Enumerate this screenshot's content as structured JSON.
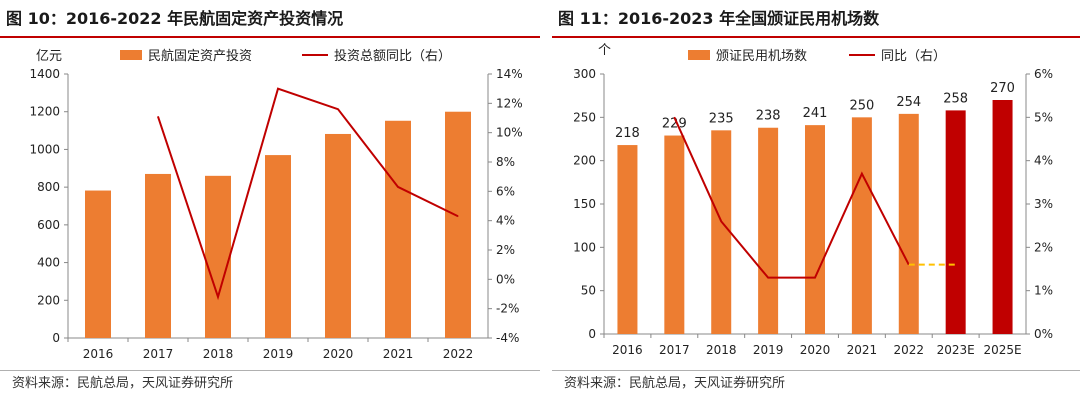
{
  "charts": [
    {
      "figure_title": "图 10：2016-2022 年民航固定资产投资情况",
      "source": "资料来源：民航总局，天风证券研究所",
      "y_left_unit": "亿元",
      "y_right_unit": "",
      "colors": {
        "bar": "#ed7d31",
        "bar_estimate": "#c00000",
        "line": "#c00000",
        "title_rule": "#c00000"
      }
    },
    {
      "figure_title": "图 11：2016-2023 年全国颁证民用机场数",
      "source": "资料来源：民航总局，天风证券研究所",
      "y_left_unit": "个",
      "y_right_unit": "",
      "colors": {
        "bar": "#ed7d31",
        "bar_estimate": "#c00000",
        "line": "#c00000",
        "dashed": "#ffc000",
        "title_rule": "#c00000"
      }
    }
  ],
  "chart_data": [
    {
      "type": "bar",
      "title": "图 10：2016-2022 年民航固定资产投资情况",
      "categories": [
        "2016",
        "2017",
        "2018",
        "2019",
        "2020",
        "2021",
        "2022"
      ],
      "series": [
        {
          "name": "民航固定资产投资",
          "type": "bar",
          "axis": "left",
          "values": [
            782,
            870,
            860,
            970,
            1082,
            1152,
            1200
          ]
        },
        {
          "name": "投资总额同比（右）",
          "type": "line",
          "axis": "right",
          "unit": "%",
          "values": [
            null,
            11.1,
            -1.2,
            13.0,
            11.6,
            6.3,
            4.3
          ]
        }
      ],
      "y_left": {
        "min": 0,
        "max": 1400,
        "ticks": [
          "0",
          "200",
          "400",
          "600",
          "800",
          "1000",
          "1200",
          "1400"
        ]
      },
      "y_right": {
        "min": -4,
        "max": 14,
        "ticks": [
          "-4%",
          "-2%",
          "0%",
          "2%",
          "4%",
          "6%",
          "8%",
          "10%",
          "12%",
          "14%"
        ]
      },
      "data_labels": false,
      "grid": false,
      "legend_position": "top"
    },
    {
      "type": "bar",
      "title": "图 11：2016-2023 年全国颁证民用机场数",
      "categories": [
        "2016",
        "2017",
        "2018",
        "2019",
        "2020",
        "2021",
        "2022",
        "2023E",
        "2025E"
      ],
      "estimate_categories": [
        "2023E",
        "2025E"
      ],
      "series": [
        {
          "name": "颁证民用机场数",
          "type": "bar",
          "axis": "left",
          "values": [
            218,
            229,
            235,
            238,
            241,
            250,
            254,
            258,
            270
          ]
        },
        {
          "name": "同比（右）",
          "type": "line",
          "axis": "right",
          "unit": "%",
          "values": [
            null,
            5.0,
            2.6,
            1.3,
            1.3,
            3.7,
            1.6,
            null,
            null
          ],
          "dashed_extension": [
            null,
            null,
            null,
            null,
            null,
            null,
            1.6,
            1.6,
            null
          ]
        }
      ],
      "y_left": {
        "min": 0,
        "max": 300,
        "ticks": [
          "0",
          "50",
          "100",
          "150",
          "200",
          "250",
          "300"
        ]
      },
      "y_right": {
        "min": 0,
        "max": 6,
        "ticks": [
          "0%",
          "1%",
          "2%",
          "3%",
          "4%",
          "5%",
          "6%"
        ]
      },
      "data_labels": true,
      "grid": false,
      "legend_position": "top"
    }
  ]
}
